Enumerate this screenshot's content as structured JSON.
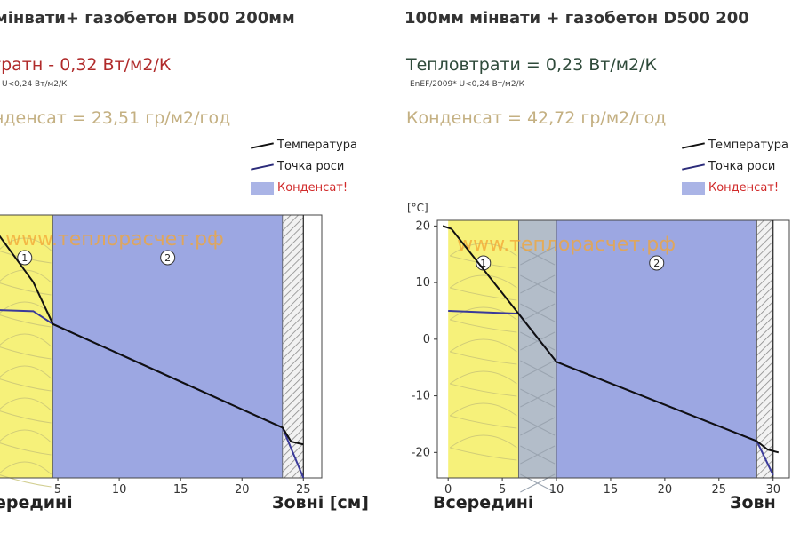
{
  "chart_data": [
    {
      "type": "line",
      "title": "мінвати+ газобетон D500 200мм",
      "heat_loss": "тратн - 0,32 Вт/м2/К",
      "heat_loss_color": "#b02a2a",
      "norm": "U<0,24 Вт/м2/К",
      "condensate": "нденсат = 23,51 гр/м2/год",
      "legend": [
        "Температура",
        "Точка роси",
        "Конденсат!"
      ],
      "legend_colors": [
        "#111111",
        "#2b2b7a",
        "#aab4e6"
      ],
      "watermark": "www.теплорасчет.рф",
      "xlabel_inside": "ередині",
      "xlabel_outside": "Зовні [см]",
      "ylabel": "",
      "xlim": [
        0,
        26.5
      ],
      "ylim": [
        -25,
        22
      ],
      "xticks": [
        5,
        10,
        15,
        20,
        25
      ],
      "yticks": [],
      "layers": [
        {
          "label": "1",
          "from": 0,
          "to": 4.6,
          "color": "#f6f17a"
        },
        {
          "label": "2",
          "from": 4.6,
          "to": 23.3,
          "color": "#9ca7e2"
        },
        {
          "label": "",
          "from": 23.3,
          "to": 25.0,
          "color": "#e6e6e6",
          "hatch": true
        }
      ],
      "condensation_zone": [
        4.6,
        23.3
      ],
      "temperature": {
        "x": [
          0,
          3.0,
          4.6,
          23.3,
          24.0,
          25.0
        ],
        "y": [
          19.0,
          10.0,
          2.5,
          -16.0,
          -18.5,
          -19.0
        ]
      },
      "dew_point": {
        "x": [
          0,
          3.0,
          4.6,
          23.3,
          25.0
        ],
        "y": [
          5.0,
          4.8,
          2.5,
          -16.0,
          -25.0
        ]
      }
    },
    {
      "type": "line",
      "title": "100мм мінвати + газобетон D500 200",
      "heat_loss": "Тепловтрати = 0,23 Вт/м2/К",
      "heat_loss_color": "#2e4a3a",
      "norm": "EnEF/2009* U<0,24 Вт/м2/К",
      "condensate": "Конденсат = 42,72 гр/м2/год",
      "legend": [
        "Температура",
        "Точка роси",
        "Конденсат!"
      ],
      "legend_colors": [
        "#111111",
        "#2b2b7a",
        "#aab4e6"
      ],
      "watermark": "www.теплорасчет.рф",
      "xlabel_inside": "Всередині",
      "xlabel_outside": "Зовн",
      "ylabel": "[°C]",
      "xlim": [
        -1,
        31.5
      ],
      "ylim": [
        -24.5,
        21
      ],
      "xticks": [
        0,
        5,
        10,
        15,
        20,
        25,
        30
      ],
      "yticks": [
        20,
        10,
        0,
        -10,
        -20
      ],
      "layers": [
        {
          "label": "1",
          "from": 0,
          "to": 6.5,
          "color": "#f6f17a"
        },
        {
          "label": "",
          "from": 6.5,
          "to": 10,
          "color": "#b3bdc9"
        },
        {
          "label": "2",
          "from": 10,
          "to": 28.5,
          "color": "#9ca7e2"
        },
        {
          "label": "",
          "from": 28.5,
          "to": 30,
          "color": "#e6e6e6",
          "hatch": true
        }
      ],
      "condensation_zone": [
        6.5,
        28.5
      ],
      "temperature": {
        "x": [
          -0.5,
          0.3,
          6.5,
          10,
          28.5,
          29.5,
          30.5
        ],
        "y": [
          20,
          19.5,
          4.5,
          -4.0,
          -18.0,
          -19.5,
          -20.0
        ]
      },
      "dew_point": {
        "x": [
          0,
          6.5,
          10,
          28.5,
          30
        ],
        "y": [
          5.0,
          4.5,
          -4.0,
          -18.0,
          -24.0
        ]
      }
    }
  ]
}
